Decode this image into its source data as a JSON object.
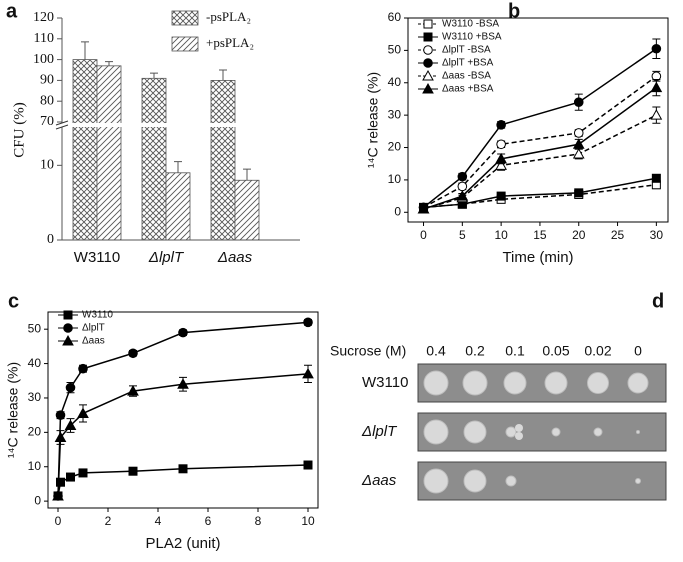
{
  "chart_data": [
    {
      "panel": "a",
      "type": "bar",
      "ylabel": "CFU (%)",
      "categories": [
        "W3110",
        "ΔlplT",
        "Δaas"
      ],
      "series": [
        {
          "name": "-psPLA₂",
          "hatch": "cross",
          "color": "#555555",
          "values": [
            100,
            91,
            90
          ],
          "errors": [
            8.5,
            2.5,
            5
          ]
        },
        {
          "name": "+psPLA₂",
          "hatch": "diag",
          "color": "#555555",
          "values": [
            97,
            9,
            8
          ],
          "errors": [
            2,
            1.5,
            1.5
          ]
        }
      ],
      "ylim": [
        0,
        120
      ],
      "axis_break": [
        15,
        70
      ],
      "yticks": [
        0,
        10,
        70,
        80,
        90,
        100,
        110,
        120
      ]
    },
    {
      "panel": "b",
      "type": "line",
      "xlabel": "Time (min)",
      "ylabel": "¹⁴C release (%)",
      "x": [
        0,
        5,
        10,
        20,
        30
      ],
      "series": [
        {
          "name": "W3110 -BSA",
          "marker": "square",
          "filled": false,
          "dashed": true,
          "color": "#000000",
          "values": [
            1.5,
            2.5,
            4,
            5.5,
            8.5
          ],
          "errors": [
            0.5,
            0.5,
            0.8,
            0.8,
            1.2
          ]
        },
        {
          "name": "W3110 +BSA",
          "marker": "square",
          "filled": true,
          "dashed": false,
          "color": "#000000",
          "values": [
            1.5,
            2.5,
            5,
            6,
            10.5
          ],
          "errors": [
            0.5,
            0.5,
            0.8,
            0.8,
            1
          ]
        },
        {
          "name": "ΔlplT -BSA",
          "marker": "circle",
          "filled": false,
          "dashed": true,
          "color": "#000000",
          "values": [
            1.5,
            8,
            21,
            24.5,
            42
          ],
          "errors": [
            0.5,
            1,
            1,
            1,
            1.5
          ]
        },
        {
          "name": "ΔlplT +BSA",
          "marker": "circle",
          "filled": true,
          "dashed": false,
          "color": "#000000",
          "values": [
            1.5,
            11,
            27,
            34,
            50.5
          ],
          "errors": [
            0.5,
            1,
            1,
            2.5,
            3
          ]
        },
        {
          "name": "Δaas -BSA",
          "marker": "triangle",
          "filled": false,
          "dashed": true,
          "color": "#000000",
          "values": [
            1,
            4.5,
            14.5,
            18,
            30
          ],
          "errors": [
            0.5,
            0.8,
            1.5,
            1.5,
            2.5
          ]
        },
        {
          "name": "Δaas +BSA",
          "marker": "triangle",
          "filled": true,
          "dashed": false,
          "color": "#000000",
          "values": [
            1,
            5,
            16.5,
            21,
            38.5
          ],
          "errors": [
            0.5,
            0.8,
            1.5,
            1.5,
            2.5
          ]
        }
      ],
      "xlim": [
        -2,
        31.5
      ],
      "xticks": [
        0,
        5,
        10,
        15,
        20,
        25,
        30
      ],
      "ylim": [
        -3,
        60
      ],
      "yticks": [
        0,
        10,
        20,
        30,
        40,
        50,
        60
      ],
      "legend": "upper-left"
    },
    {
      "panel": "c",
      "type": "line",
      "xlabel": "PLA2 (unit)",
      "ylabel": "¹⁴C release (%)",
      "x": [
        0,
        0.1,
        0.5,
        1,
        3,
        5,
        10
      ],
      "series": [
        {
          "name": "W3110",
          "marker": "square",
          "filled": true,
          "dashed": false,
          "color": "#000000",
          "values": [
            1.5,
            5.5,
            7,
            8.2,
            8.7,
            9.4,
            10.5
          ],
          "errors": [
            1,
            0.5,
            0.5,
            0.5,
            0.5,
            0.5,
            0.8
          ]
        },
        {
          "name": "ΔlplT",
          "marker": "circle",
          "filled": true,
          "dashed": false,
          "color": "#000000",
          "values": [
            1.5,
            25,
            33,
            38.5,
            43,
            49,
            52
          ],
          "errors": [
            1,
            1,
            1.5,
            1,
            0.8,
            0.8,
            0.8
          ]
        },
        {
          "name": "Δaas",
          "marker": "triangle",
          "filled": true,
          "dashed": false,
          "color": "#000000",
          "values": [
            1.5,
            18.5,
            22,
            25.5,
            32,
            34,
            37
          ],
          "errors": [
            1,
            2,
            2,
            2.5,
            1.5,
            2,
            2.5
          ]
        }
      ],
      "xlim": [
        -0.4,
        10.4
      ],
      "xticks": [
        0,
        2,
        4,
        6,
        8,
        10
      ],
      "ylim": [
        -2,
        55
      ],
      "yticks": [
        0,
        10,
        20,
        30,
        40,
        50
      ],
      "legend": "upper-left"
    }
  ],
  "plate_panel": {
    "panel": "d",
    "header": "Sucrose (M)",
    "columns": [
      "0.4",
      "0.2",
      "0.1",
      "0.05",
      "0.02",
      "0"
    ],
    "rows": [
      "W3110",
      "ΔlplT",
      "Δaas"
    ]
  }
}
